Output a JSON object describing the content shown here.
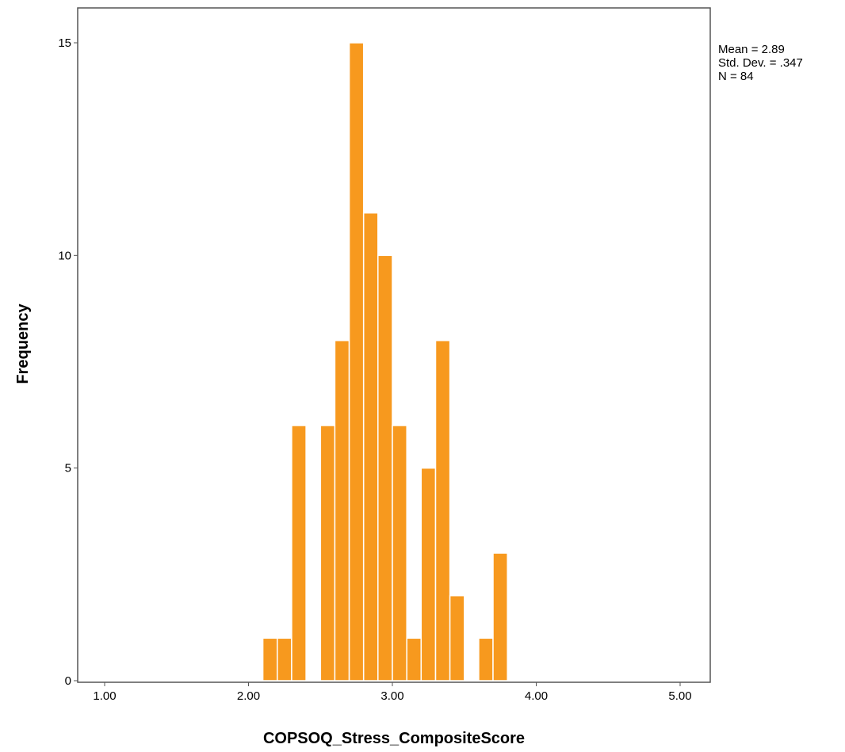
{
  "chart_data": {
    "type": "bar",
    "title": "",
    "xlabel": "COPSOQ_Stress_CompositeScore",
    "ylabel": "Frequency",
    "xlim": [
      0.8,
      5.2
    ],
    "ylim": [
      0,
      16
    ],
    "bin_width": 0.1,
    "x_ticks": [
      {
        "value": 1.0,
        "label": "1.00"
      },
      {
        "value": 2.0,
        "label": "2.00"
      },
      {
        "value": 3.0,
        "label": "3.00"
      },
      {
        "value": 4.0,
        "label": "4.00"
      },
      {
        "value": 5.0,
        "label": "5.00"
      }
    ],
    "y_ticks": [
      {
        "value": 0,
        "label": "0"
      },
      {
        "value": 5,
        "label": "5"
      },
      {
        "value": 10,
        "label": "10"
      },
      {
        "value": 15,
        "label": "15"
      }
    ],
    "bins": [
      {
        "start": 2.1,
        "end": 2.2,
        "count": 1
      },
      {
        "start": 2.2,
        "end": 2.3,
        "count": 1
      },
      {
        "start": 2.3,
        "end": 2.4,
        "count": 6
      },
      {
        "start": 2.5,
        "end": 2.6,
        "count": 6
      },
      {
        "start": 2.6,
        "end": 2.7,
        "count": 8
      },
      {
        "start": 2.7,
        "end": 2.8,
        "count": 15
      },
      {
        "start": 2.8,
        "end": 2.9,
        "count": 11
      },
      {
        "start": 2.9,
        "end": 3.0,
        "count": 10
      },
      {
        "start": 3.0,
        "end": 3.1,
        "count": 6
      },
      {
        "start": 3.1,
        "end": 3.2,
        "count": 1
      },
      {
        "start": 3.2,
        "end": 3.3,
        "count": 5
      },
      {
        "start": 3.3,
        "end": 3.4,
        "count": 8
      },
      {
        "start": 3.4,
        "end": 3.5,
        "count": 2
      },
      {
        "start": 3.6,
        "end": 3.7,
        "count": 1
      },
      {
        "start": 3.7,
        "end": 3.8,
        "count": 3
      }
    ],
    "bar_color": "#F7991E",
    "bar_edge_color": "#ffffff",
    "grid": false,
    "legend": "none"
  },
  "stats": {
    "mean": "Mean = 2.89",
    "std_dev": "Std. Dev. = .347",
    "n": "N = 84"
  }
}
